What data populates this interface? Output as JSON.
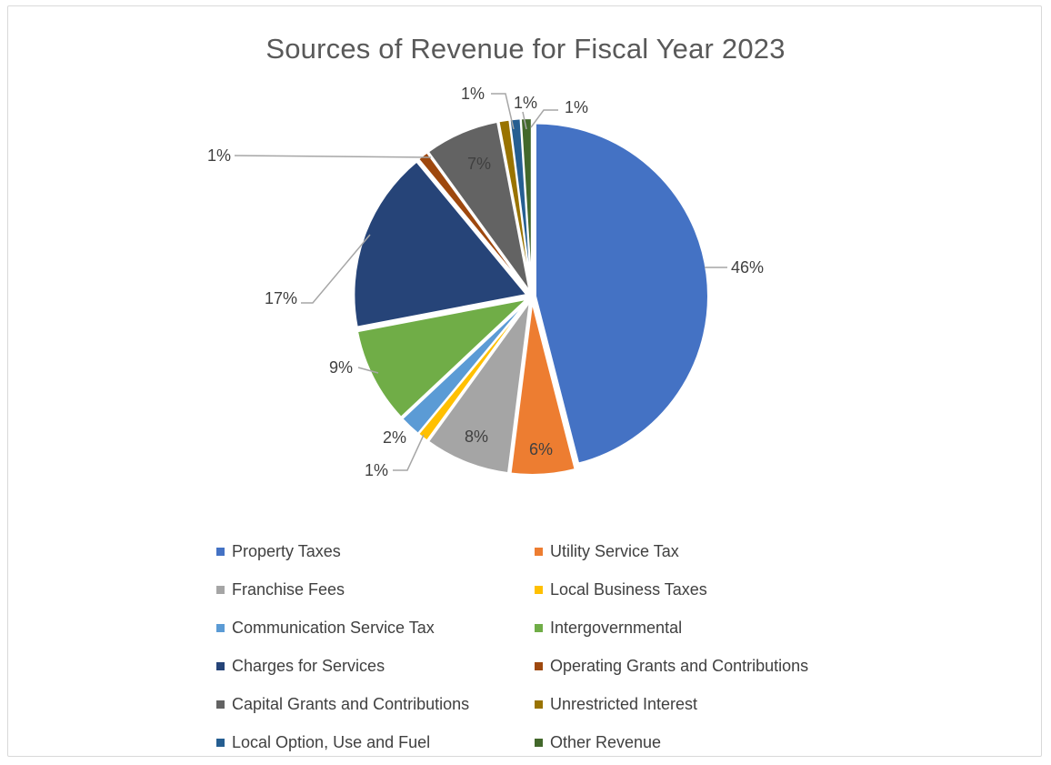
{
  "chart_data": {
    "type": "pie",
    "title": "Sources of Revenue for Fiscal Year 2023",
    "legend_position": "bottom",
    "slices": [
      {
        "label": "Property Taxes",
        "value": 46,
        "value_label": "46%",
        "color": "#4472C4"
      },
      {
        "label": "Utility Service Tax",
        "value": 6,
        "value_label": "6%",
        "color": "#ED7D31"
      },
      {
        "label": "Franchise Fees",
        "value": 8,
        "value_label": "8%",
        "color": "#A5A5A5"
      },
      {
        "label": "Local Business Taxes",
        "value": 1,
        "value_label": "1%",
        "color": "#FFC000"
      },
      {
        "label": "Communication Service Tax",
        "value": 2,
        "value_label": "2%",
        "color": "#5B9BD5"
      },
      {
        "label": "Intergovernmental",
        "value": 9,
        "value_label": "9%",
        "color": "#70AD47"
      },
      {
        "label": "Charges for Services",
        "value": 17,
        "value_label": "17%",
        "color": "#264478"
      },
      {
        "label": "Operating Grants and Contributions",
        "value": 1,
        "value_label": "1%",
        "color": "#9E480E"
      },
      {
        "label": "Capital Grants and Contributions",
        "value": 7,
        "value_label": "7%",
        "color": "#636363"
      },
      {
        "label": "Unrestricted Interest",
        "value": 1,
        "value_label": "1%",
        "color": "#997300"
      },
      {
        "label": "Local Option, Use and Fuel",
        "value": 1,
        "value_label": "1%",
        "color": "#255E91"
      },
      {
        "label": "Other Revenue",
        "value": 1,
        "value_label": "1%",
        "color": "#43682B"
      }
    ]
  }
}
